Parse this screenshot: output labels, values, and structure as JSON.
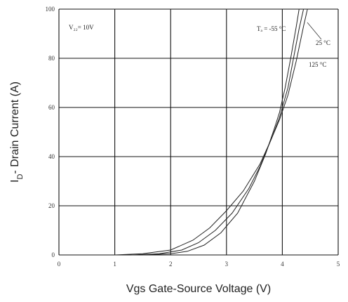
{
  "chart_data": {
    "type": "line",
    "xlabel": "Vgs Gate-Source Voltage (V)",
    "ylabel_main": "I",
    "ylabel_sub": "D",
    "ylabel_rest": "- Drain Current (A)",
    "xlim": [
      0,
      5
    ],
    "ylim": [
      0,
      100
    ],
    "x_ticks": [
      "0",
      "1",
      "2",
      "3",
      "4",
      "5"
    ],
    "y_ticks": [
      "0",
      "20",
      "40",
      "60",
      "80",
      "100"
    ],
    "grid": true,
    "annotations": {
      "condition": "V₂₂= 10V",
      "temp_minus55": "Tₐ = -55 °C",
      "temp_25": "25 °C",
      "temp_125": "125 °C"
    },
    "series": [
      {
        "label": "-55 °C",
        "x": [
          1.5,
          2.0,
          2.3,
          2.6,
          2.9,
          3.2,
          3.5,
          3.7,
          3.85,
          3.95,
          4.05,
          4.15,
          4.25,
          4.3
        ],
        "y": [
          0,
          0.5,
          1.5,
          4,
          9,
          17,
          30,
          41,
          51,
          58,
          68,
          80,
          93,
          100
        ]
      },
      {
        "label": "25 °C",
        "x": [
          1.3,
          1.8,
          2.2,
          2.5,
          2.8,
          3.1,
          3.4,
          3.6,
          3.8,
          3.95,
          4.1,
          4.2,
          4.3,
          4.38
        ],
        "y": [
          0,
          0.5,
          2,
          5,
          10,
          17,
          27,
          36,
          47,
          56,
          68,
          80,
          92,
          100
        ]
      },
      {
        "label": "125 °C",
        "x": [
          1.0,
          1.5,
          2.0,
          2.4,
          2.7,
          3.0,
          3.3,
          3.6,
          3.8,
          3.95,
          4.1,
          4.25,
          4.38,
          4.45
        ],
        "y": [
          0,
          0.5,
          2,
          6,
          11,
          18,
          26,
          37,
          47,
          55,
          65,
          79,
          93,
          100
        ]
      }
    ]
  }
}
